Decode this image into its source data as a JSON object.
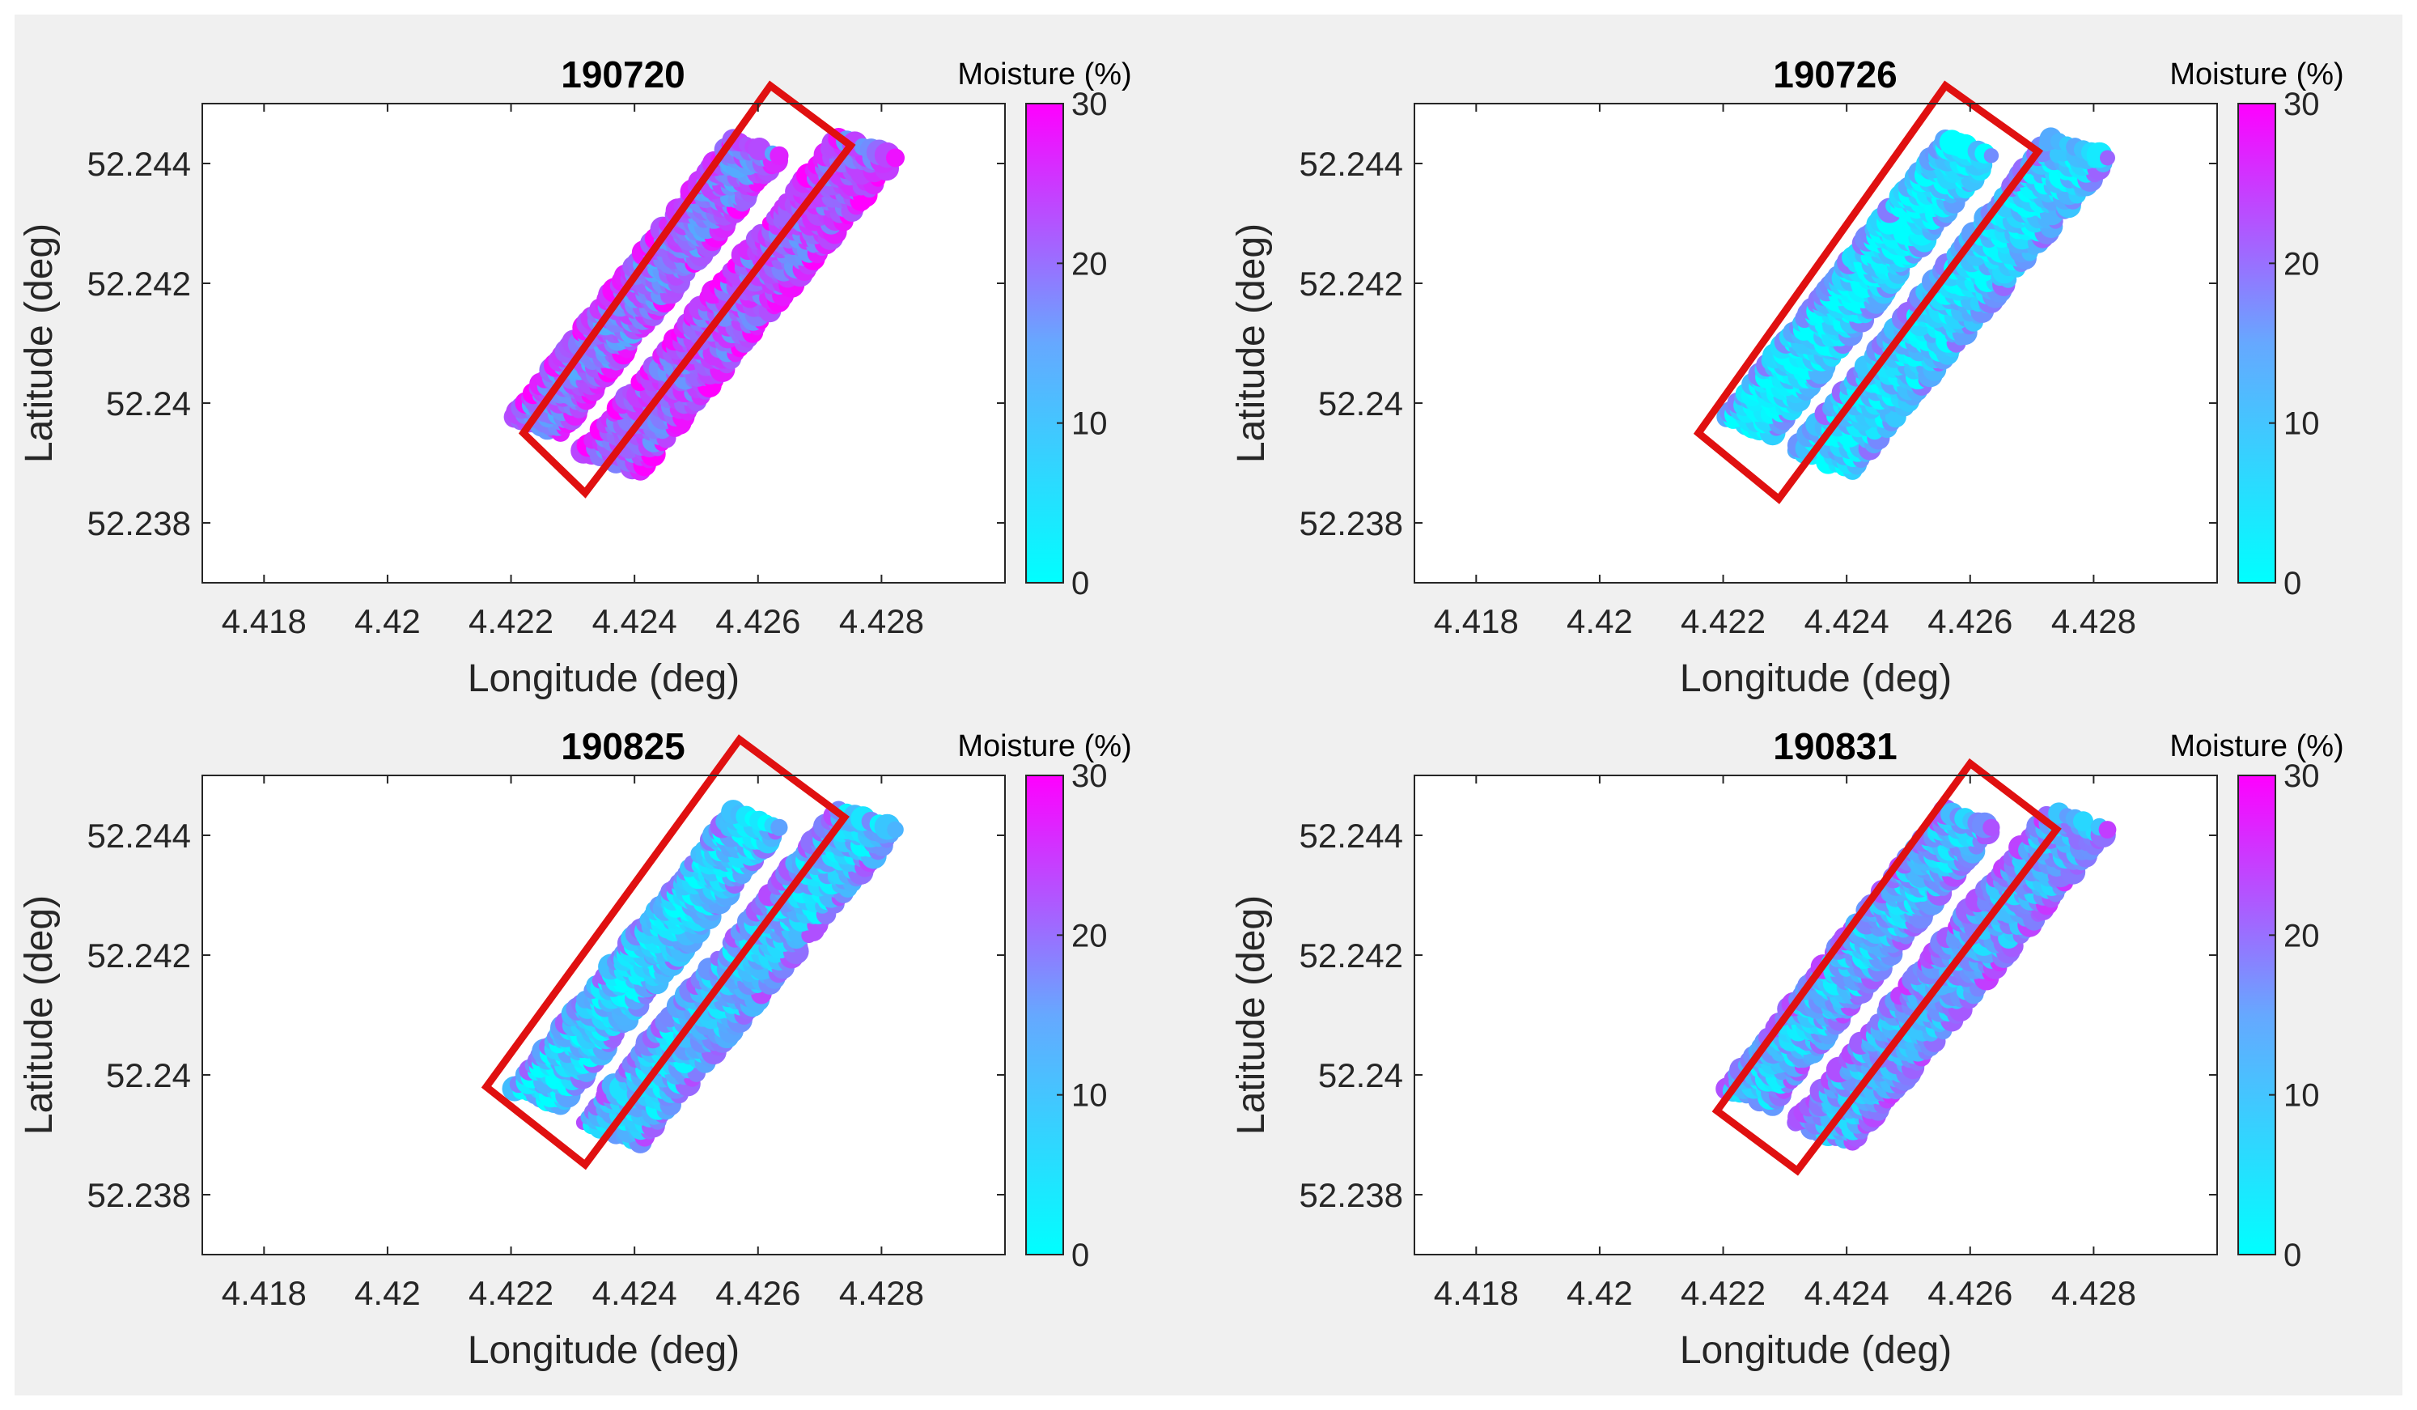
{
  "colors": {
    "frame": "#f0f0f0",
    "plot_bg": "#ffffff",
    "axis": "#262626",
    "text": "#262626",
    "box": "#e01010",
    "cmap_low": "#00ffff",
    "cmap_high": "#ff00ff"
  },
  "chart_data": [
    {
      "type": "heatmap",
      "title": "190720",
      "xlabel": "Longitude (deg)",
      "ylabel": "Latitude (deg)",
      "xlim": [
        4.417,
        4.43
      ],
      "ylim": [
        52.237,
        52.245
      ],
      "xticks": [
        4.418,
        4.42,
        4.422,
        4.424,
        4.426,
        4.428
      ],
      "xtick_labels": [
        "4.418",
        "4.42",
        "4.422",
        "4.424",
        "4.426",
        "4.428"
      ],
      "yticks": [
        52.244,
        52.242,
        52.24,
        52.238
      ],
      "ytick_labels": [
        "52.244",
        "52.242",
        "52.24",
        "52.238"
      ],
      "colorbar": {
        "label": "Moisture (%)",
        "range": [
          0,
          30
        ],
        "ticks": [
          30,
          20,
          10,
          0
        ],
        "tick_labels": [
          "30",
          "20",
          "10",
          "0"
        ]
      },
      "moisture_mean": 16,
      "highlight_box": [
        [
          4.4222,
          52.2395
        ],
        [
          4.4262,
          52.2453
        ],
        [
          4.4275,
          52.2443
        ],
        [
          4.4232,
          52.2385
        ]
      ]
    },
    {
      "type": "heatmap",
      "title": "190726",
      "xlabel": "Longitude (deg)",
      "ylabel": "Latitude (deg)",
      "xlim": [
        4.417,
        4.43
      ],
      "ylim": [
        52.237,
        52.245
      ],
      "xticks": [
        4.418,
        4.42,
        4.422,
        4.424,
        4.426,
        4.428
      ],
      "xtick_labels": [
        "4.418",
        "4.42",
        "4.422",
        "4.424",
        "4.426",
        "4.428"
      ],
      "yticks": [
        52.244,
        52.242,
        52.24,
        52.238
      ],
      "ytick_labels": [
        "52.244",
        "52.242",
        "52.24",
        "52.238"
      ],
      "colorbar": {
        "label": "Moisture (%)",
        "range": [
          0,
          30
        ],
        "ticks": [
          30,
          20,
          10,
          0
        ],
        "tick_labels": [
          "30",
          "20",
          "10",
          "0"
        ]
      },
      "moisture_mean": 2,
      "highlight_box": [
        [
          4.4216,
          52.2395
        ],
        [
          4.4256,
          52.2453
        ],
        [
          4.4271,
          52.2442
        ],
        [
          4.4229,
          52.2384
        ]
      ]
    },
    {
      "type": "heatmap",
      "title": "190825",
      "xlabel": "Longitude (deg)",
      "ylabel": "Latitude (deg)",
      "xlim": [
        4.417,
        4.43
      ],
      "ylim": [
        52.237,
        52.245
      ],
      "xticks": [
        4.418,
        4.42,
        4.422,
        4.424,
        4.426,
        4.428
      ],
      "xtick_labels": [
        "4.418",
        "4.42",
        "4.422",
        "4.424",
        "4.426",
        "4.428"
      ],
      "yticks": [
        52.244,
        52.242,
        52.24,
        52.238
      ],
      "ytick_labels": [
        "52.244",
        "52.242",
        "52.24",
        "52.238"
      ],
      "colorbar": {
        "label": "Moisture (%)",
        "range": [
          0,
          30
        ],
        "ticks": [
          30,
          20,
          10,
          0
        ],
        "tick_labels": [
          "30",
          "20",
          "10",
          "0"
        ]
      },
      "moisture_mean": 5,
      "highlight_box": [
        [
          4.4216,
          52.2398
        ],
        [
          4.4257,
          52.2456
        ],
        [
          4.4274,
          52.2443
        ],
        [
          4.4232,
          52.2385
        ]
      ]
    },
    {
      "type": "heatmap",
      "title": "190831",
      "xlabel": "Longitude (deg)",
      "ylabel": "Latitude (deg)",
      "xlim": [
        4.417,
        4.43
      ],
      "ylim": [
        52.237,
        52.245
      ],
      "xticks": [
        4.418,
        4.42,
        4.422,
        4.424,
        4.426,
        4.428
      ],
      "xtick_labels": [
        "4.418",
        "4.42",
        "4.422",
        "4.424",
        "4.426",
        "4.428"
      ],
      "yticks": [
        52.244,
        52.242,
        52.24,
        52.238
      ],
      "ytick_labels": [
        "52.244",
        "52.242",
        "52.24",
        "52.238"
      ],
      "colorbar": {
        "label": "Moisture (%)",
        "range": [
          0,
          30
        ],
        "ticks": [
          30,
          20,
          10,
          0
        ],
        "tick_labels": [
          "30",
          "20",
          "10",
          "0"
        ]
      },
      "moisture_mean": 8,
      "highlight_box": [
        [
          4.4219,
          52.2394
        ],
        [
          4.426,
          52.2452
        ],
        [
          4.4274,
          52.2441
        ],
        [
          4.4232,
          52.2384
        ]
      ]
    }
  ]
}
